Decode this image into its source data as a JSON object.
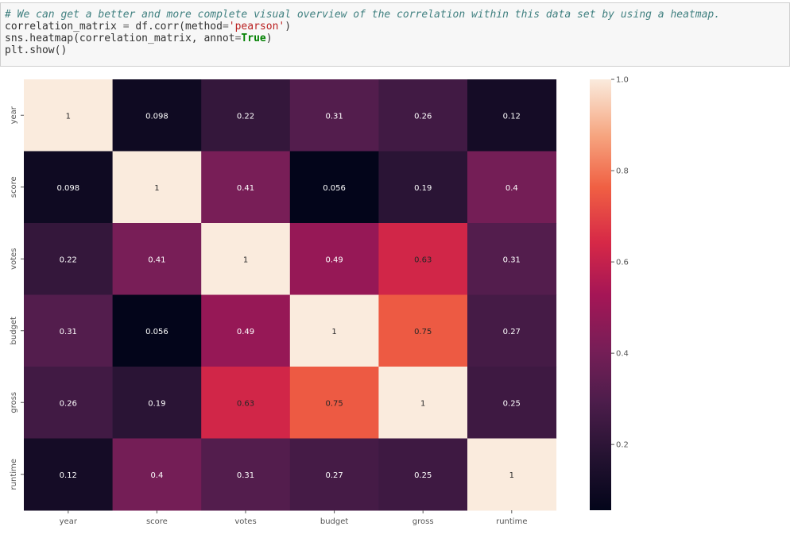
{
  "code_cell": {
    "line1_comment": "# We can get a better and more complete visual overview of the correlation within this data set by using a heatmap.",
    "line2_var": "correlation_matrix",
    "line2_eq": " = ",
    "line2_call": "df.corr(method",
    "line2_assign": "=",
    "line2_str": "'pearson'",
    "line2_close": ")",
    "line3_call": "sns.heatmap(correlation_matrix, annot",
    "line3_assign": "=",
    "line3_kw": "True",
    "line3_close": ")",
    "line4": "plt.show()"
  },
  "chart_data": {
    "type": "heatmap",
    "x_categories": [
      "year",
      "score",
      "votes",
      "budget",
      "gross",
      "runtime"
    ],
    "y_categories": [
      "year",
      "score",
      "votes",
      "budget",
      "gross",
      "runtime"
    ],
    "values": [
      [
        1,
        0.098,
        0.22,
        0.31,
        0.26,
        0.12
      ],
      [
        0.098,
        1,
        0.41,
        0.056,
        0.19,
        0.4
      ],
      [
        0.22,
        0.41,
        1,
        0.49,
        0.63,
        0.31
      ],
      [
        0.31,
        0.056,
        0.49,
        1,
        0.75,
        0.27
      ],
      [
        0.26,
        0.19,
        0.63,
        0.75,
        1,
        0.25
      ],
      [
        0.12,
        0.4,
        0.31,
        0.27,
        0.25,
        1
      ]
    ],
    "labels": [
      [
        "1",
        "0.098",
        "0.22",
        "0.31",
        "0.26",
        "0.12"
      ],
      [
        "0.098",
        "1",
        "0.41",
        "0.056",
        "0.19",
        "0.4"
      ],
      [
        "0.22",
        "0.41",
        "1",
        "0.49",
        "0.63",
        "0.31"
      ],
      [
        "0.31",
        "0.056",
        "0.49",
        "1",
        "0.75",
        "0.27"
      ],
      [
        "0.26",
        "0.19",
        "0.63",
        "0.75",
        "1",
        "0.25"
      ],
      [
        "0.12",
        "0.4",
        "0.31",
        "0.27",
        "0.25",
        "1"
      ]
    ],
    "colorbar": {
      "range": [
        0.056,
        1
      ],
      "ticks": [
        1.0,
        0.8,
        0.6,
        0.4,
        0.2
      ],
      "tick_labels": [
        "1.0",
        "0.8",
        "0.6",
        "0.4",
        "0.2"
      ],
      "colormap": "rocket"
    },
    "title": "",
    "xlabel": "",
    "ylabel": ""
  }
}
